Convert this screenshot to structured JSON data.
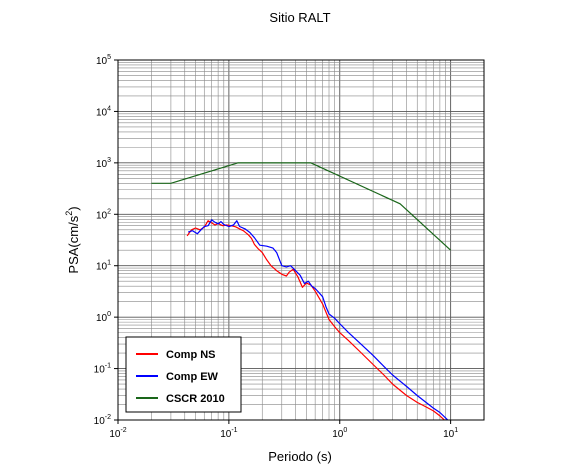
{
  "chart_data": {
    "type": "line",
    "title": "Sitio RALT",
    "xlabel": "Periodo (s)",
    "ylabel_base": "PSA(cm/s",
    "ylabel_exp": "2",
    "ylabel_close": ")",
    "x_scale": "log",
    "y_scale": "log",
    "xlim": [
      0.01,
      20
    ],
    "ylim": [
      0.01,
      100000
    ],
    "grid": true,
    "legend_position": "bottom-left",
    "x_ticks": [
      {
        "base": "10",
        "exp": "-2",
        "value": 0.01
      },
      {
        "base": "10",
        "exp": "-1",
        "value": 0.1
      },
      {
        "base": "10",
        "exp": "0",
        "value": 1
      },
      {
        "base": "10",
        "exp": "1",
        "value": 10
      }
    ],
    "y_ticks": [
      {
        "base": "10",
        "exp": "-2",
        "value": 0.01
      },
      {
        "base": "10",
        "exp": "-1",
        "value": 0.1
      },
      {
        "base": "10",
        "exp": "0",
        "value": 1
      },
      {
        "base": "10",
        "exp": "1",
        "value": 10
      },
      {
        "base": "10",
        "exp": "2",
        "value": 100
      },
      {
        "base": "10",
        "exp": "3",
        "value": 1000
      },
      {
        "base": "10",
        "exp": "4",
        "value": 10000
      },
      {
        "base": "10",
        "exp": "5",
        "value": 100000
      }
    ],
    "series": [
      {
        "name": "Comp NS",
        "color": "#ff0000",
        "points": [
          [
            0.042,
            38
          ],
          [
            0.046,
            50
          ],
          [
            0.05,
            54
          ],
          [
            0.055,
            50
          ],
          [
            0.06,
            56
          ],
          [
            0.065,
            75
          ],
          [
            0.07,
            68
          ],
          [
            0.075,
            62
          ],
          [
            0.08,
            66
          ],
          [
            0.088,
            60
          ],
          [
            0.095,
            62
          ],
          [
            0.105,
            60
          ],
          [
            0.115,
            57
          ],
          [
            0.125,
            52
          ],
          [
            0.135,
            48
          ],
          [
            0.15,
            40
          ],
          [
            0.16,
            34
          ],
          [
            0.17,
            26
          ],
          [
            0.185,
            21
          ],
          [
            0.2,
            18
          ],
          [
            0.22,
            13
          ],
          [
            0.24,
            10
          ],
          [
            0.27,
            8
          ],
          [
            0.3,
            6.8
          ],
          [
            0.33,
            6.3
          ],
          [
            0.35,
            7.5
          ],
          [
            0.38,
            8.5
          ],
          [
            0.42,
            6
          ],
          [
            0.46,
            3.8
          ],
          [
            0.5,
            4.6
          ],
          [
            0.55,
            4.2
          ],
          [
            0.6,
            3.2
          ],
          [
            0.7,
            1.8
          ],
          [
            0.8,
            0.9
          ],
          [
            0.9,
            0.65
          ],
          [
            1.0,
            0.5
          ],
          [
            1.2,
            0.35
          ],
          [
            1.5,
            0.22
          ],
          [
            2.0,
            0.12
          ],
          [
            2.5,
            0.075
          ],
          [
            3.0,
            0.05
          ],
          [
            4.0,
            0.03
          ],
          [
            5.0,
            0.022
          ],
          [
            6.0,
            0.018
          ],
          [
            7.0,
            0.015
          ],
          [
            8.0,
            0.012
          ],
          [
            9.0,
            0.0095
          ],
          [
            10.0,
            0.0082
          ]
        ]
      },
      {
        "name": "Comp EW",
        "color": "#0000ff",
        "points": [
          [
            0.043,
            45
          ],
          [
            0.047,
            48
          ],
          [
            0.052,
            42
          ],
          [
            0.056,
            50
          ],
          [
            0.06,
            58
          ],
          [
            0.065,
            60
          ],
          [
            0.07,
            78
          ],
          [
            0.075,
            70
          ],
          [
            0.08,
            65
          ],
          [
            0.085,
            72
          ],
          [
            0.09,
            63
          ],
          [
            0.1,
            58
          ],
          [
            0.11,
            62
          ],
          [
            0.118,
            75
          ],
          [
            0.125,
            58
          ],
          [
            0.14,
            52
          ],
          [
            0.155,
            44
          ],
          [
            0.17,
            35
          ],
          [
            0.19,
            25
          ],
          [
            0.22,
            24
          ],
          [
            0.25,
            22
          ],
          [
            0.27,
            18
          ],
          [
            0.3,
            10
          ],
          [
            0.33,
            9.5
          ],
          [
            0.36,
            10
          ],
          [
            0.4,
            8
          ],
          [
            0.44,
            6.5
          ],
          [
            0.48,
            4.5
          ],
          [
            0.52,
            5
          ],
          [
            0.56,
            4
          ],
          [
            0.6,
            3.6
          ],
          [
            0.65,
            3
          ],
          [
            0.7,
            2.5
          ],
          [
            0.75,
            1.6
          ],
          [
            0.8,
            1.15
          ],
          [
            0.9,
            0.95
          ],
          [
            1.0,
            0.75
          ],
          [
            1.2,
            0.5
          ],
          [
            1.5,
            0.32
          ],
          [
            2.0,
            0.18
          ],
          [
            2.5,
            0.11
          ],
          [
            3.0,
            0.075
          ],
          [
            4.0,
            0.045
          ],
          [
            5.0,
            0.03
          ],
          [
            6.0,
            0.022
          ],
          [
            7.0,
            0.017
          ],
          [
            8.0,
            0.014
          ],
          [
            9.0,
            0.011
          ],
          [
            10.0,
            0.0088
          ]
        ]
      },
      {
        "name": "CSCR 2010",
        "color": "#1a661a",
        "points": [
          [
            0.02,
            400
          ],
          [
            0.03,
            400
          ],
          [
            0.12,
            1000
          ],
          [
            0.55,
            1000
          ],
          [
            3.5,
            160
          ],
          [
            10.0,
            20
          ]
        ]
      }
    ]
  }
}
